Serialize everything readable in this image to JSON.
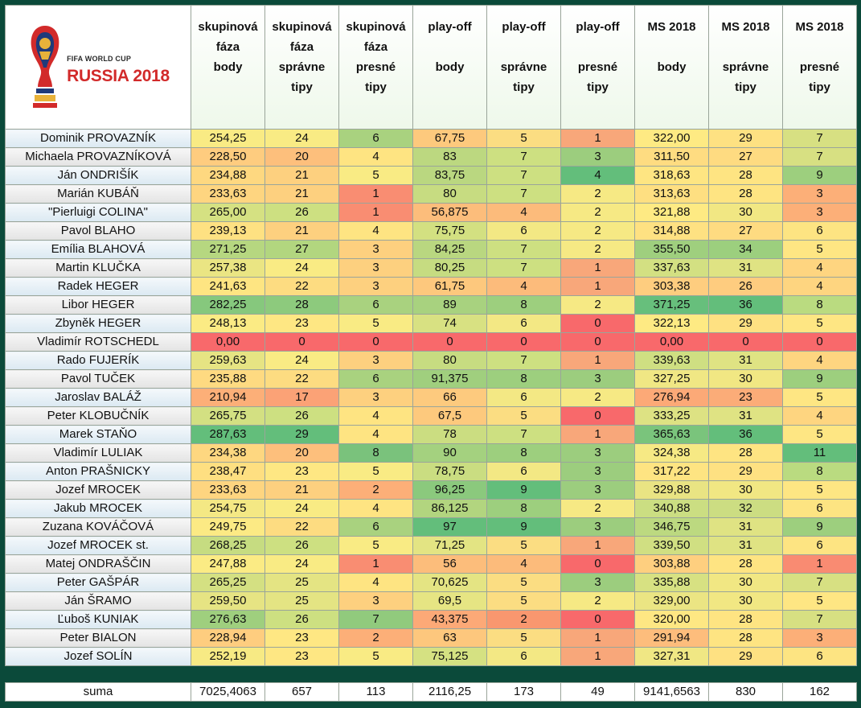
{
  "logo": {
    "line1": "FIFA WORLD CUP",
    "line2": "RUSSIA 2018"
  },
  "headers": [
    {
      "l1": "skupinová",
      "l2": "fáza",
      "l3": "body",
      "l4": ""
    },
    {
      "l1": "skupinová",
      "l2": "fáza",
      "l3": "správne",
      "l4": "tipy"
    },
    {
      "l1": "skupinová",
      "l2": "fáza",
      "l3": "presné",
      "l4": "tipy"
    },
    {
      "l1": "play-off",
      "l2": "",
      "l3": "body",
      "l4": ""
    },
    {
      "l1": "play-off",
      "l2": "",
      "l3": "správne",
      "l4": "tipy"
    },
    {
      "l1": "play-off",
      "l2": "",
      "l3": "presné",
      "l4": "tipy"
    },
    {
      "l1": "MS 2018",
      "l2": "",
      "l3": "body",
      "l4": ""
    },
    {
      "l1": "MS 2018",
      "l2": "",
      "l3": "správne",
      "l4": "tipy"
    },
    {
      "l1": "MS 2018",
      "l2": "",
      "l3": "presné",
      "l4": "tipy"
    }
  ],
  "rows": [
    {
      "name": "Dominik PROVAZNÍK",
      "v": [
        "254,25",
        "24",
        "6",
        "67,75",
        "5",
        "1",
        "322,00",
        "29",
        "7"
      ],
      "c": [
        "#f9eb84",
        "#f9eb84",
        "#a9d27f",
        "#fdc97d",
        "#fbdd82",
        "#f8a77a",
        "#feea83",
        "#fee182",
        "#d7e082"
      ]
    },
    {
      "name": "Michaela PROVAZNÍKOVÁ",
      "v": [
        "228,50",
        "20",
        "4",
        "83",
        "7",
        "3",
        "311,50",
        "27",
        "7"
      ],
      "c": [
        "#fecc7f",
        "#fdbf7c",
        "#fee482",
        "#bcd880",
        "#cde081",
        "#9ccd7e",
        "#fedc81",
        "#fedb81",
        "#d7e082"
      ]
    },
    {
      "name": "Ján ONDRIŠÍK",
      "v": [
        "234,88",
        "21",
        "5",
        "83,75",
        "7",
        "4",
        "318,63",
        "28",
        "9"
      ],
      "c": [
        "#fed880",
        "#fdd07f",
        "#f9eb84",
        "#bad780",
        "#cde081",
        "#63be7b",
        "#fee582",
        "#fee482",
        "#9dcf7e"
      ]
    },
    {
      "name": "Marián KUBÁŇ",
      "v": [
        "233,63",
        "21",
        "1",
        "80",
        "7",
        "2",
        "313,63",
        "28",
        "3"
      ],
      "c": [
        "#fed580",
        "#fdd07f",
        "#f98d72",
        "#c7dc81",
        "#cde081",
        "#f6e984",
        "#fedf81",
        "#fee482",
        "#fcaf78"
      ]
    },
    {
      "name": "\"Pierluigi COLINA\"",
      "v": [
        "265,00",
        "26",
        "1",
        "56,875",
        "4",
        "2",
        "321,88",
        "30",
        "3"
      ],
      "c": [
        "#d5e182",
        "#cde081",
        "#f98d72",
        "#fcbd7b",
        "#fcbb7b",
        "#f6e984",
        "#feea83",
        "#f1e783",
        "#fcaf78"
      ]
    },
    {
      "name": "Pavol BLAHO",
      "v": [
        "239,13",
        "21",
        "4",
        "75,75",
        "6",
        "2",
        "314,88",
        "27",
        "6"
      ],
      "c": [
        "#fee182",
        "#fdd07f",
        "#fee482",
        "#d3e081",
        "#f3e884",
        "#f6e984",
        "#fee182",
        "#fedb81",
        "#fde482"
      ]
    },
    {
      "name": "Emília BLAHOVÁ",
      "v": [
        "271,25",
        "27",
        "3",
        "84,25",
        "7",
        "2",
        "355,50",
        "34",
        "5"
      ],
      "c": [
        "#b6d780",
        "#b2d67f",
        "#fdd07f",
        "#b9d780",
        "#cde081",
        "#f6e984",
        "#9fcf7e",
        "#9ccf7e",
        "#fee683"
      ]
    },
    {
      "name": "Martin KLUČKA",
      "v": [
        "257,38",
        "24",
        "3",
        "80,25",
        "7",
        "1",
        "337,63",
        "31",
        "4"
      ],
      "c": [
        "#eae583",
        "#f9eb84",
        "#fdd07f",
        "#c6dc81",
        "#cde081",
        "#f8a77a",
        "#d3e082",
        "#dfe383",
        "#fed580"
      ]
    },
    {
      "name": "Radek HEGER",
      "v": [
        "241,63",
        "22",
        "3",
        "61,75",
        "4",
        "1",
        "303,38",
        "26",
        "4"
      ],
      "c": [
        "#fee582",
        "#fddc81",
        "#fdd07f",
        "#fdc87d",
        "#fcbb7b",
        "#f8a77a",
        "#fecd7f",
        "#fecc7f",
        "#fed580"
      ]
    },
    {
      "name": "Libor HEGER",
      "v": [
        "282,25",
        "28",
        "6",
        "89",
        "8",
        "2",
        "371,25",
        "36",
        "8"
      ],
      "c": [
        "#86c87d",
        "#8dca7d",
        "#a9d27f",
        "#a8d27f",
        "#9dcf7e",
        "#f6e984",
        "#67bf7c",
        "#63be7b",
        "#badb80"
      ]
    },
    {
      "name": "Zbyněk HEGER",
      "v": [
        "248,13",
        "23",
        "5",
        "74",
        "6",
        "0",
        "322,13",
        "29",
        "5"
      ],
      "c": [
        "#fbeb84",
        "#fee783",
        "#f9eb84",
        "#d8e182",
        "#f3e884",
        "#f8696b",
        "#feea83",
        "#fee182",
        "#fee683"
      ]
    },
    {
      "name": "Vladimír ROTSCHEDL",
      "v": [
        "0,00",
        "0",
        "0",
        "0",
        "0",
        "0",
        "0,00",
        "0",
        "0"
      ],
      "c": [
        "#f8696b",
        "#f8696b",
        "#f8696b",
        "#f8696b",
        "#f8696b",
        "#f8696b",
        "#f8696b",
        "#f8696b",
        "#f8696b"
      ]
    },
    {
      "name": "Rado FUJERÍK",
      "v": [
        "259,63",
        "24",
        "3",
        "80",
        "7",
        "1",
        "339,63",
        "31",
        "4"
      ],
      "c": [
        "#e6e483",
        "#f9eb84",
        "#fdd07f",
        "#c7dc81",
        "#cde081",
        "#f8a77a",
        "#cfdf82",
        "#dfe383",
        "#fed580"
      ]
    },
    {
      "name": "Pavol TUČEK",
      "v": [
        "235,88",
        "22",
        "6",
        "91,375",
        "8",
        "3",
        "327,25",
        "30",
        "9"
      ],
      "c": [
        "#feda81",
        "#fddc81",
        "#a9d27f",
        "#a0cf7e",
        "#9dcf7e",
        "#9ccd7e",
        "#f0e784",
        "#f1e783",
        "#9dcf7e"
      ]
    },
    {
      "name": "Jaroslav BALÁŽ",
      "v": [
        "210,94",
        "17",
        "3",
        "66",
        "6",
        "2",
        "276,94",
        "23",
        "5"
      ],
      "c": [
        "#fcaf78",
        "#fba276",
        "#fdd07f",
        "#fdca7e",
        "#f3e884",
        "#f6e984",
        "#fca977",
        "#fbac78",
        "#fee683"
      ]
    },
    {
      "name": "Peter KLOBUČNÍK",
      "v": [
        "265,75",
        "26",
        "4",
        "67,5",
        "5",
        "0",
        "333,25",
        "31",
        "4"
      ],
      "c": [
        "#d3e082",
        "#cde081",
        "#fee482",
        "#fdc97d",
        "#fbdd82",
        "#f8696b",
        "#dde283",
        "#dfe383",
        "#fed580"
      ]
    },
    {
      "name": "Marek STAŇO",
      "v": [
        "287,63",
        "29",
        "4",
        "78",
        "7",
        "1",
        "365,63",
        "36",
        "5"
      ],
      "c": [
        "#63be7b",
        "#63be7b",
        "#fee482",
        "#cbdd81",
        "#cde081",
        "#f8a77a",
        "#7ac47c",
        "#63be7b",
        "#fee683"
      ]
    },
    {
      "name": "Vladimír LULIAK",
      "v": [
        "234,38",
        "20",
        "8",
        "90",
        "8",
        "3",
        "324,38",
        "28",
        "11"
      ],
      "c": [
        "#fed780",
        "#fdbf7c",
        "#7ac27c",
        "#a4d17f",
        "#9dcf7e",
        "#9ccd7e",
        "#f6e984",
        "#fee482",
        "#63be7b"
      ]
    },
    {
      "name": "Anton PRAŠNICKY",
      "v": [
        "238,47",
        "23",
        "5",
        "78,75",
        "6",
        "3",
        "317,22",
        "29",
        "8"
      ],
      "c": [
        "#fedf81",
        "#fee783",
        "#f9eb84",
        "#cadd81",
        "#f3e884",
        "#9ccd7e",
        "#fee482",
        "#fee182",
        "#badb80"
      ]
    },
    {
      "name": "Jozef MROCEK",
      "v": [
        "233,63",
        "21",
        "2",
        "96,25",
        "9",
        "3",
        "329,88",
        "30",
        "5"
      ],
      "c": [
        "#fed580",
        "#fdd07f",
        "#fcaf78",
        "#8bc97d",
        "#63be7b",
        "#9ccd7e",
        "#e9e483",
        "#f1e783",
        "#fee683"
      ]
    },
    {
      "name": "Jakub MROCEK",
      "v": [
        "254,75",
        "24",
        "4",
        "86,125",
        "8",
        "2",
        "340,88",
        "32",
        "6"
      ],
      "c": [
        "#f4e884",
        "#f9eb84",
        "#fee482",
        "#b2d57f",
        "#9dcf7e",
        "#f6e984",
        "#cbde82",
        "#ccdd82",
        "#fde482"
      ]
    },
    {
      "name": "Zuzana KOVÁČOVÁ",
      "v": [
        "249,75",
        "22",
        "6",
        "97",
        "9",
        "3",
        "346,75",
        "31",
        "9"
      ],
      "c": [
        "#fcea84",
        "#fddc81",
        "#a9d27f",
        "#63be7b",
        "#63be7b",
        "#9ccd7e",
        "#bcd980",
        "#dfe383",
        "#9dcf7e"
      ]
    },
    {
      "name": "Jozef MROCEK st.",
      "v": [
        "268,25",
        "26",
        "5",
        "71,25",
        "5",
        "1",
        "339,50",
        "31",
        "6"
      ],
      "c": [
        "#c6dc81",
        "#cde081",
        "#f9eb84",
        "#e3e483",
        "#fbdd82",
        "#f8a77a",
        "#d0df82",
        "#dfe383",
        "#fde482"
      ]
    },
    {
      "name": "Matej ONDRAŠČIN",
      "v": [
        "247,88",
        "24",
        "1",
        "56",
        "4",
        "0",
        "303,88",
        "28",
        "1"
      ],
      "c": [
        "#fbeb84",
        "#f9eb84",
        "#f98d72",
        "#fcbd7b",
        "#fcbb7b",
        "#f8696b",
        "#fecf7f",
        "#fee482",
        "#f98b72"
      ]
    },
    {
      "name": "Peter GAŠPÁR",
      "v": [
        "265,25",
        "25",
        "4",
        "70,625",
        "5",
        "3",
        "335,88",
        "30",
        "7"
      ],
      "c": [
        "#d4e082",
        "#e4e483",
        "#fee482",
        "#e4e483",
        "#fbdd82",
        "#9ccd7e",
        "#d7e182",
        "#f1e783",
        "#d7e082"
      ]
    },
    {
      "name": "Ján ŠRAMO",
      "v": [
        "259,50",
        "25",
        "3",
        "69,5",
        "5",
        "2",
        "329,00",
        "30",
        "5"
      ],
      "c": [
        "#e6e483",
        "#e4e483",
        "#fdd07f",
        "#e6e583",
        "#fbdd82",
        "#f6e984",
        "#ebe583",
        "#f1e783",
        "#fee683"
      ]
    },
    {
      "name": "Ľuboš KUNIAK",
      "v": [
        "276,63",
        "26",
        "7",
        "43,375",
        "2",
        "0",
        "320,00",
        "28",
        "7"
      ],
      "c": [
        "#9fcf7e",
        "#cde081",
        "#91ca7d",
        "#fca977",
        "#f9976f",
        "#f8696b",
        "#fee783",
        "#fee482",
        "#d7e082"
      ]
    },
    {
      "name": "Peter BIALON",
      "v": [
        "228,94",
        "23",
        "2",
        "63",
        "5",
        "1",
        "291,94",
        "28",
        "3"
      ],
      "c": [
        "#fecd7f",
        "#fee783",
        "#fcaf78",
        "#fdc77d",
        "#fbdd82",
        "#f8a77a",
        "#fdbd7c",
        "#fee482",
        "#fcaf78"
      ]
    },
    {
      "name": "Jozef SOLÍN",
      "v": [
        "252,19",
        "23",
        "5",
        "75,125",
        "6",
        "1",
        "327,31",
        "29",
        "6"
      ],
      "c": [
        "#f7ea84",
        "#fee783",
        "#f9eb84",
        "#d5e182",
        "#f3e884",
        "#f8a77a",
        "#f0e784",
        "#fee182",
        "#fde482"
      ]
    }
  ],
  "sum": {
    "label": "suma",
    "values": [
      "7025,4063",
      "657",
      "113",
      "2116,25",
      "173",
      "49",
      "9141,6563",
      "830",
      "162"
    ]
  }
}
